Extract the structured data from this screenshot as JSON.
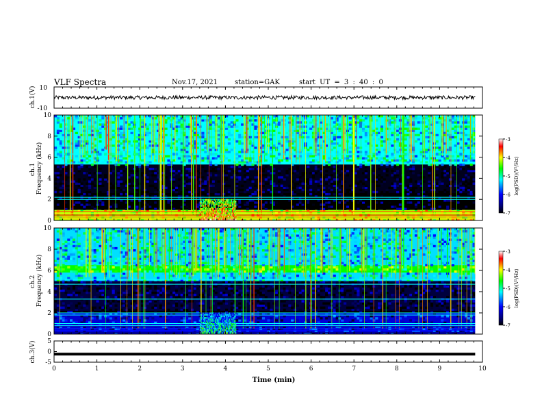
{
  "header": {
    "title": "VLF Spectra",
    "date": "Nov.17, 2021",
    "station": "station=GAK",
    "start": "start UT = 3 : 40 : 0"
  },
  "chart_data": [
    {
      "type": "line",
      "panel": "ch1_waveform",
      "ylabel": "ch.1(V)",
      "ylim": [
        -10,
        10
      ],
      "yticks": [
        "10",
        "-10"
      ],
      "xlim": [
        0,
        10
      ],
      "description_values": {
        "mean": 0,
        "noise_amplitude": 2.5,
        "data_end_min": 9.83
      }
    },
    {
      "type": "heatmap",
      "panel": "ch1_spectrogram",
      "ylabel": "ch.1\nFrequency (kHz)",
      "ylim": [
        0,
        10
      ],
      "yticks": [
        "0",
        "2",
        "4",
        "6",
        "8",
        "10"
      ],
      "xlim": [
        0,
        10
      ],
      "colorbar": {
        "label": "log(PSD)(V²/Hz)",
        "range": [
          -7,
          -3
        ],
        "ticks": [
          "-3",
          "-4",
          "-5",
          "-6",
          "-7"
        ]
      },
      "features": {
        "upper_band_khz": [
          5.3,
          10
        ],
        "upper_band_level": -5.2,
        "quiet_band_khz": [
          2.6,
          5.3
        ],
        "quiet_level": -6.9,
        "low_band_khz": [
          0,
          1.0
        ],
        "low_band_level": -4.2,
        "burst_time_min": [
          3.4,
          4.25
        ],
        "burst_freq_khz": [
          0,
          2.0
        ],
        "burst_level": -3.6,
        "hlines_khz": [
          2.2,
          2.0,
          5.45,
          6.3
        ],
        "data_end_min": 9.83
      }
    },
    {
      "type": "heatmap",
      "panel": "ch2_spectrogram",
      "ylabel": "ch.2\nFrequency (kHz)",
      "ylim": [
        0,
        10
      ],
      "yticks": [
        "0",
        "2",
        "4",
        "6",
        "8",
        "10"
      ],
      "xlim": [
        0,
        10
      ],
      "colorbar": {
        "label": "log(PSD)(V²/Hz)",
        "range": [
          -7,
          -3
        ],
        "ticks": [
          "-3",
          "-4",
          "-5",
          "-6",
          "-7"
        ]
      },
      "features": {
        "upper_band_khz": [
          5.0,
          10
        ],
        "upper_band_level": -5.3,
        "green_band_khz": [
          5.8,
          6.5
        ],
        "green_band_level": -4.6,
        "quiet_band_khz": [
          2.2,
          5.0
        ],
        "quiet_level": -6.8,
        "low_band_khz": [
          0,
          2.0
        ],
        "low_band_level": -6.2,
        "burst_time_min": [
          3.4,
          4.25
        ],
        "burst_freq_khz": [
          0,
          2.0
        ],
        "burst_level": -4.8,
        "hlines_khz": [
          2.0,
          1.8,
          1.0,
          0.8,
          4.7,
          5.15,
          3.3
        ],
        "data_end_min": 9.83
      }
    },
    {
      "type": "line",
      "panel": "ch3_waveform",
      "ylabel": "ch.3(V)",
      "ylim": [
        -5,
        5
      ],
      "yticks": [
        "5",
        "0",
        "-5"
      ],
      "xlim": [
        0,
        10
      ],
      "xticks": [
        "0",
        "1",
        "2",
        "3",
        "4",
        "5",
        "6",
        "7",
        "8",
        "9",
        "10"
      ],
      "xlabel": "Time (min)",
      "values": {
        "constant": -1.2,
        "data_end_min": 9.83
      }
    }
  ]
}
